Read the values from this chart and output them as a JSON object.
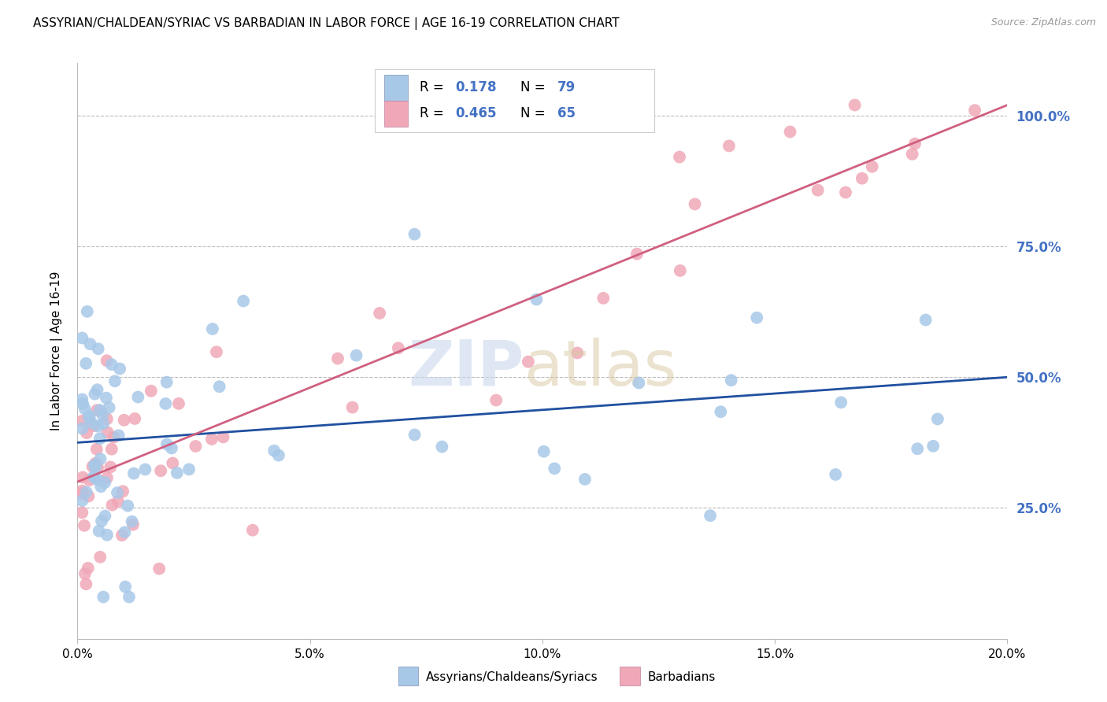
{
  "title": "ASSYRIAN/CHALDEAN/SYRIAC VS BARBADIAN IN LABOR FORCE | AGE 16-19 CORRELATION CHART",
  "source": "Source: ZipAtlas.com",
  "ylabel": "In Labor Force | Age 16-19",
  "y_tick_labels": [
    "25.0%",
    "50.0%",
    "75.0%",
    "100.0%"
  ],
  "y_tick_values": [
    0.25,
    0.5,
    0.75,
    1.0
  ],
  "xlim": [
    0.0,
    0.2
  ],
  "ylim": [
    0.0,
    1.1
  ],
  "blue_color": "#A8C8E8",
  "pink_color": "#F0A8B8",
  "blue_line_color": "#2050A0",
  "pink_line_color": "#D06080",
  "R_blue": 0.178,
  "N_blue": 79,
  "R_pink": 0.465,
  "N_pink": 65,
  "legend_label_blue": "Assyrians/Chaldeans/Syriacs",
  "legend_label_pink": "Barbadians",
  "blue_trend_x": [
    0.0,
    0.2
  ],
  "blue_trend_y": [
    0.375,
    0.5
  ],
  "pink_trend_x": [
    0.0,
    0.2
  ],
  "pink_trend_y": [
    0.3,
    1.02
  ],
  "title_fontsize": 11,
  "tick_color": "#4472C4",
  "background_color": "#FFFFFF",
  "grid_color": "#BBBBBB"
}
